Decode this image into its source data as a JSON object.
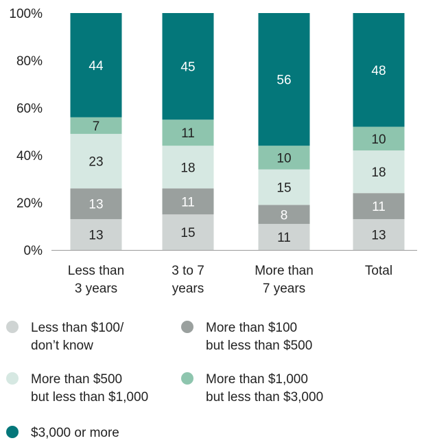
{
  "chart_data": {
    "type": "bar",
    "stacked": true,
    "categories": [
      [
        "Less than",
        "3 years"
      ],
      [
        "3 to 7",
        "years"
      ],
      [
        "More than",
        "7 years"
      ],
      [
        "Total"
      ]
    ],
    "ylim": [
      0,
      100
    ],
    "yticks": [
      0,
      20,
      40,
      60,
      80,
      100
    ],
    "ytick_labels": [
      "0%",
      "20%",
      "40%",
      "60%",
      "80%",
      "100%"
    ],
    "grid": false,
    "legend_position": "bottom",
    "series": [
      {
        "name": [
          "Less than $100/",
          "don’t know"
        ],
        "color": "#cfd4d3",
        "label_color": "#222222",
        "values": [
          13,
          15,
          11,
          13
        ]
      },
      {
        "name": [
          "More than $100",
          "but less than $500"
        ],
        "color": "#9aa09e",
        "label_color": "#ffffff",
        "values": [
          13,
          11,
          8,
          11
        ]
      },
      {
        "name": [
          "More than $500",
          "but less than $1,000"
        ],
        "color": "#d6e8e2",
        "label_color": "#222222",
        "values": [
          23,
          18,
          15,
          18
        ]
      },
      {
        "name": [
          "More than $1,000",
          "but less than $3,000"
        ],
        "color": "#8ec5ae",
        "label_color": "#222222",
        "values": [
          7,
          11,
          10,
          10
        ]
      },
      {
        "name": [
          "$3,000 or more"
        ],
        "color": "#04777a",
        "label_color": "#ffffff",
        "values": [
          44,
          45,
          56,
          48
        ]
      }
    ]
  }
}
